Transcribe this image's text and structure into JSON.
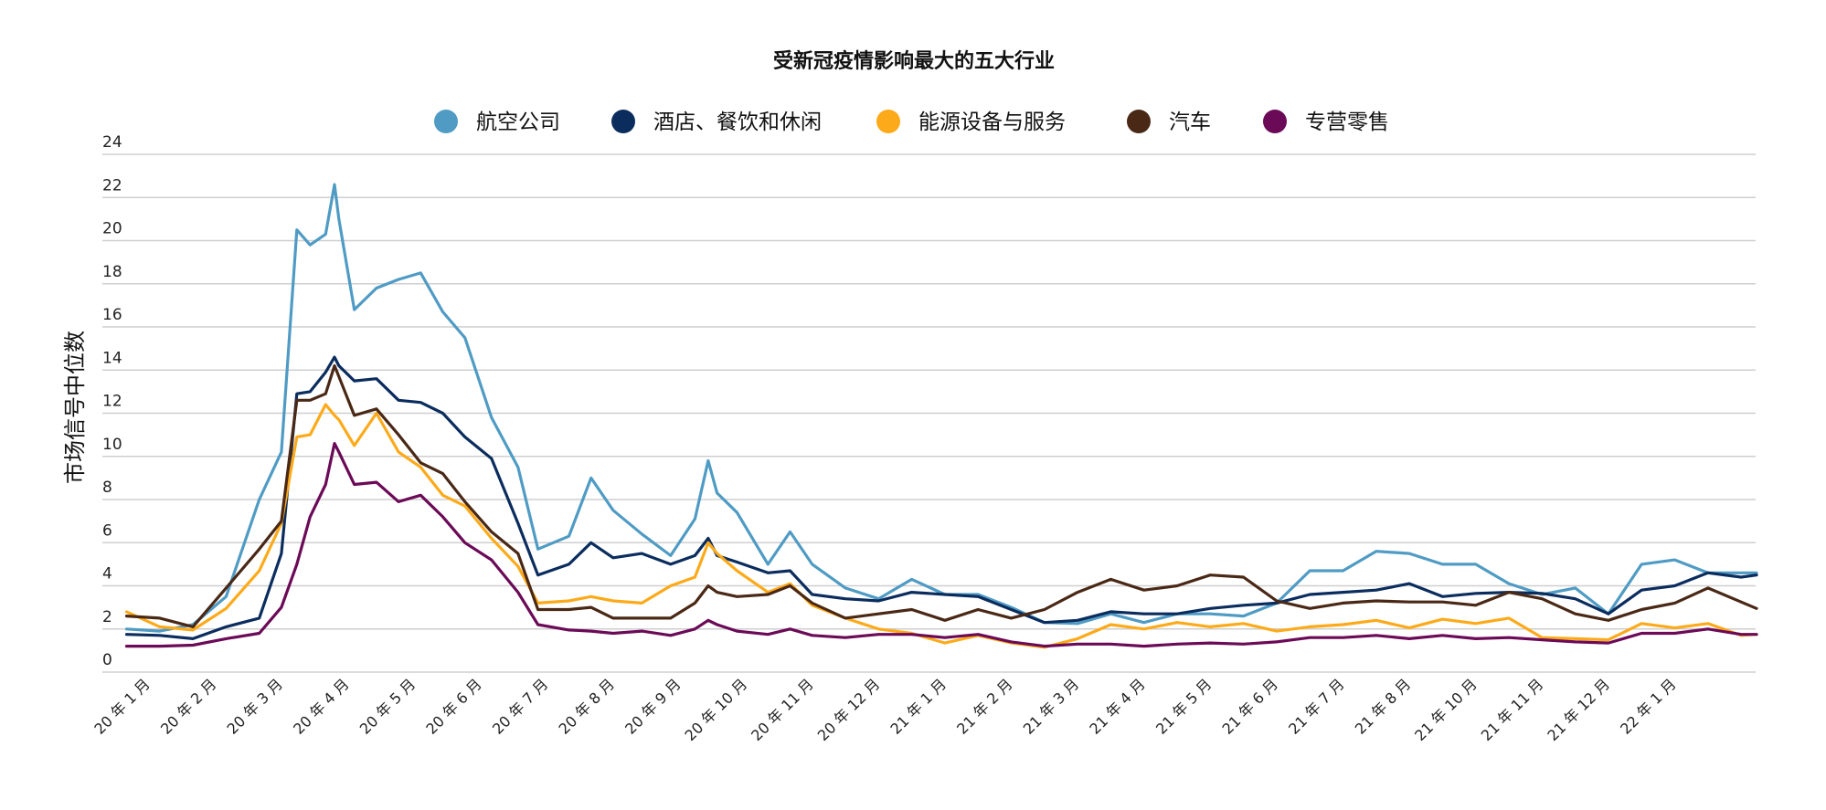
{
  "chart_data": {
    "type": "line",
    "title": "受新冠疫情影响最大的五大行业",
    "xlabel": "",
    "ylabel": "市场信号中位数",
    "ylim": [
      0,
      24
    ],
    "yticks": [
      0,
      2,
      4,
      6,
      8,
      10,
      12,
      14,
      16,
      18,
      20,
      22,
      24
    ],
    "grid": "horizontal",
    "legend_position": "top",
    "x_tick_labels": [
      "20 年 1 月",
      "20 年 2 月",
      "20 年 3 月",
      "20 年 4 月",
      "20 年 5 月",
      "20 年 6 月",
      "20 年 7 月",
      "20 年 8 月",
      "20 年 9 月",
      "20 年 10 月",
      "20 年 11 月",
      "20 年 12 月",
      "21 年 1 月",
      "21 年 2 月",
      "21 年 3 月",
      "21 年 4 月",
      "21 年 5 月",
      "21 年 6 月",
      "21 年 7 月",
      "21 年 8 月",
      "21 年 10 月",
      "21 年 11 月",
      "21 年 12 月",
      "22 年 1 月"
    ],
    "x": [
      "2019-12-25",
      "2020-01-10",
      "2020-01-25",
      "2020-02-10",
      "2020-02-25",
      "2020-03-05",
      "2020-03-12",
      "2020-03-18",
      "2020-03-25",
      "2020-03-29",
      "2020-04-01",
      "2020-04-08",
      "2020-04-18",
      "2020-04-28",
      "2020-05-08",
      "2020-05-18",
      "2020-05-28",
      "2020-06-10",
      "2020-06-22",
      "2020-07-01",
      "2020-07-15",
      "2020-07-25",
      "2020-08-05",
      "2020-08-18",
      "2020-09-01",
      "2020-09-12",
      "2020-09-18",
      "2020-09-22",
      "2020-10-01",
      "2020-10-15",
      "2020-10-25",
      "2020-11-05",
      "2020-11-20",
      "2020-12-05",
      "2020-12-20",
      "2021-01-05",
      "2021-01-20",
      "2021-02-05",
      "2021-02-20",
      "2021-03-05",
      "2021-03-20",
      "2021-04-05",
      "2021-04-20",
      "2021-05-05",
      "2021-05-20",
      "2021-06-05",
      "2021-06-20",
      "2021-07-05",
      "2021-07-20",
      "2021-08-05",
      "2021-08-20",
      "2021-09-05",
      "2021-09-20",
      "2021-10-05",
      "2021-10-20",
      "2021-11-05",
      "2021-11-20",
      "2021-12-05",
      "2021-12-20",
      "2022-01-05",
      "2022-01-12"
    ],
    "series": [
      {
        "name": "航空公司",
        "color": "#4f9bc4",
        "values": [
          2.0,
          1.9,
          2.2,
          3.5,
          8.0,
          10.2,
          20.5,
          19.8,
          20.3,
          22.6,
          21.0,
          16.8,
          17.8,
          18.2,
          18.5,
          16.7,
          15.5,
          11.8,
          9.5,
          5.7,
          6.3,
          9.0,
          7.5,
          6.4,
          5.4,
          7.1,
          9.8,
          8.3,
          7.4,
          5.0,
          6.5,
          5.0,
          3.9,
          3.4,
          4.3,
          3.6,
          3.6,
          3.0,
          2.3,
          2.25,
          2.7,
          2.3,
          2.7,
          2.7,
          2.6,
          3.2,
          4.7,
          4.7,
          5.6,
          5.5,
          5.0,
          5.0,
          4.1,
          3.6,
          3.9,
          2.7,
          5.0,
          5.2,
          4.6,
          4.6,
          4.6
        ]
      },
      {
        "name": "酒店、餐饮和休闲",
        "color": "#0b2d5e",
        "values": [
          1.75,
          1.7,
          1.55,
          2.1,
          2.5,
          5.5,
          12.9,
          13.0,
          13.9,
          14.6,
          14.2,
          13.5,
          13.6,
          12.6,
          12.5,
          12.0,
          10.9,
          9.9,
          6.9,
          4.5,
          5.0,
          6.0,
          5.3,
          5.5,
          5.0,
          5.4,
          6.2,
          5.4,
          5.1,
          4.6,
          4.7,
          3.6,
          3.4,
          3.3,
          3.7,
          3.6,
          3.5,
          2.9,
          2.3,
          2.4,
          2.8,
          2.7,
          2.7,
          2.95,
          3.1,
          3.2,
          3.6,
          3.7,
          3.8,
          4.1,
          3.5,
          3.65,
          3.7,
          3.65,
          3.4,
          2.7,
          3.8,
          4.0,
          4.6,
          4.4,
          4.5
        ]
      },
      {
        "name": "能源设备与服务",
        "color": "#fdaa1a",
        "values": [
          2.8,
          2.1,
          1.95,
          2.95,
          4.7,
          6.9,
          10.9,
          11.0,
          12.4,
          11.9,
          11.7,
          10.5,
          12.0,
          10.2,
          9.5,
          8.2,
          7.7,
          6.2,
          4.9,
          3.2,
          3.3,
          3.5,
          3.3,
          3.2,
          4.0,
          4.4,
          6.0,
          5.5,
          4.7,
          3.7,
          4.1,
          3.1,
          2.5,
          2.0,
          1.8,
          1.35,
          1.7,
          1.35,
          1.15,
          1.55,
          2.2,
          2.0,
          2.3,
          2.1,
          2.25,
          1.9,
          2.1,
          2.2,
          2.4,
          2.05,
          2.45,
          2.25,
          2.5,
          1.6,
          1.55,
          1.5,
          2.25,
          2.05,
          2.25,
          1.7,
          1.75
        ]
      },
      {
        "name": "汽车",
        "color": "#4a2816",
        "values": [
          2.6,
          2.5,
          2.1,
          3.9,
          5.7,
          7.0,
          12.6,
          12.6,
          12.9,
          14.2,
          13.7,
          11.9,
          12.2,
          11.0,
          9.7,
          9.2,
          7.9,
          6.5,
          5.5,
          2.9,
          2.9,
          3.0,
          2.5,
          2.5,
          2.5,
          3.2,
          4.0,
          3.7,
          3.5,
          3.6,
          4.0,
          3.2,
          2.5,
          2.7,
          2.9,
          2.4,
          2.9,
          2.5,
          2.9,
          3.7,
          4.3,
          3.8,
          4.0,
          4.5,
          4.4,
          3.3,
          2.95,
          3.2,
          3.3,
          3.25,
          3.25,
          3.1,
          3.7,
          3.4,
          2.7,
          2.4,
          2.9,
          3.2,
          3.9,
          3.25,
          2.95
        ]
      },
      {
        "name": "专营零售",
        "color": "#6b0a57",
        "values": [
          1.2,
          1.2,
          1.25,
          1.55,
          1.8,
          3.0,
          5.0,
          7.2,
          8.7,
          10.6,
          10.2,
          8.7,
          8.8,
          7.9,
          8.2,
          7.2,
          6.0,
          5.2,
          3.7,
          2.2,
          1.95,
          1.9,
          1.8,
          1.9,
          1.7,
          2.0,
          2.4,
          2.2,
          1.9,
          1.75,
          2.0,
          1.7,
          1.6,
          1.75,
          1.75,
          1.6,
          1.75,
          1.4,
          1.2,
          1.3,
          1.3,
          1.2,
          1.3,
          1.35,
          1.3,
          1.4,
          1.6,
          1.6,
          1.7,
          1.55,
          1.7,
          1.55,
          1.6,
          1.5,
          1.4,
          1.35,
          1.8,
          1.8,
          2.0,
          1.75,
          1.75
        ]
      }
    ]
  }
}
